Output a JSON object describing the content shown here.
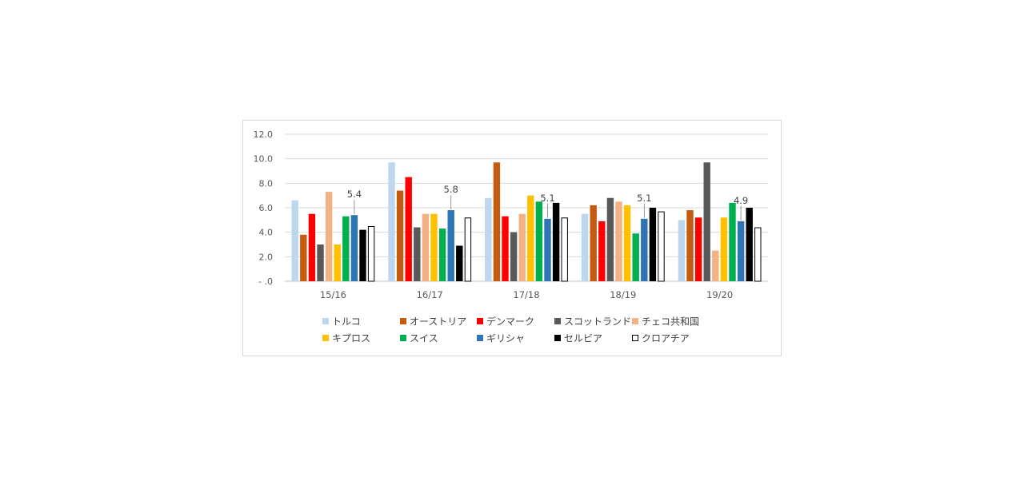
{
  "chart_data": {
    "type": "bar",
    "categories": [
      "15/16",
      "16/17",
      "17/18",
      "18/19",
      "19/20"
    ],
    "ylim": [
      0,
      12
    ],
    "yticks": [
      "12.0",
      "10.0",
      "8.0",
      "6.0",
      "4.0",
      "2.0",
      "- .0"
    ],
    "ytick_values": [
      12,
      10,
      8,
      6,
      4,
      2,
      0
    ],
    "grid": true,
    "legend_position": "bottom",
    "series": [
      {
        "name": "トルコ",
        "color": "#BDD7EE",
        "values": [
          6.6,
          9.7,
          6.8,
          5.5,
          5.0
        ]
      },
      {
        "name": "オーストリア",
        "color": "#C55A11",
        "values": [
          3.8,
          7.4,
          9.7,
          6.2,
          5.8
        ]
      },
      {
        "name": "デンマーク",
        "color": "#FF0000",
        "values": [
          5.5,
          8.5,
          5.3,
          4.9,
          5.2
        ]
      },
      {
        "name": "スコットランド",
        "color": "#595959",
        "values": [
          3.0,
          4.4,
          4.0,
          6.8,
          9.7
        ]
      },
      {
        "name": "チェコ共和国",
        "color": "#F4B183",
        "values": [
          7.3,
          5.5,
          5.5,
          6.5,
          2.5
        ]
      },
      {
        "name": "キプロス",
        "color": "#FFC000",
        "values": [
          3.0,
          5.5,
          7.0,
          6.2,
          5.2
        ]
      },
      {
        "name": "スイス",
        "color": "#00B050",
        "values": [
          5.3,
          4.3,
          6.5,
          3.9,
          6.4
        ]
      },
      {
        "name": "ギリシャ",
        "color": "#2E75B6",
        "values": [
          5.4,
          5.8,
          5.1,
          5.1,
          4.9
        ]
      },
      {
        "name": "セルビア",
        "color": "#000000",
        "values": [
          4.2,
          2.9,
          6.4,
          6.0,
          6.0
        ]
      },
      {
        "name": "クロアチア",
        "color": "#FFFFFF",
        "outline": "#000000",
        "values": [
          4.5,
          5.2,
          5.2,
          5.7,
          4.4
        ]
      }
    ],
    "data_labels": [
      {
        "series": "ギリシャ",
        "category": "15/16",
        "text": "5.4"
      },
      {
        "series": "ギリシャ",
        "category": "16/17",
        "text": "5.8"
      },
      {
        "series": "ギリシャ",
        "category": "17/18",
        "text": "5.1"
      },
      {
        "series": "ギリシャ",
        "category": "18/19",
        "text": "5.1"
      },
      {
        "series": "ギリシャ",
        "category": "19/20",
        "text": "4.9"
      }
    ]
  }
}
